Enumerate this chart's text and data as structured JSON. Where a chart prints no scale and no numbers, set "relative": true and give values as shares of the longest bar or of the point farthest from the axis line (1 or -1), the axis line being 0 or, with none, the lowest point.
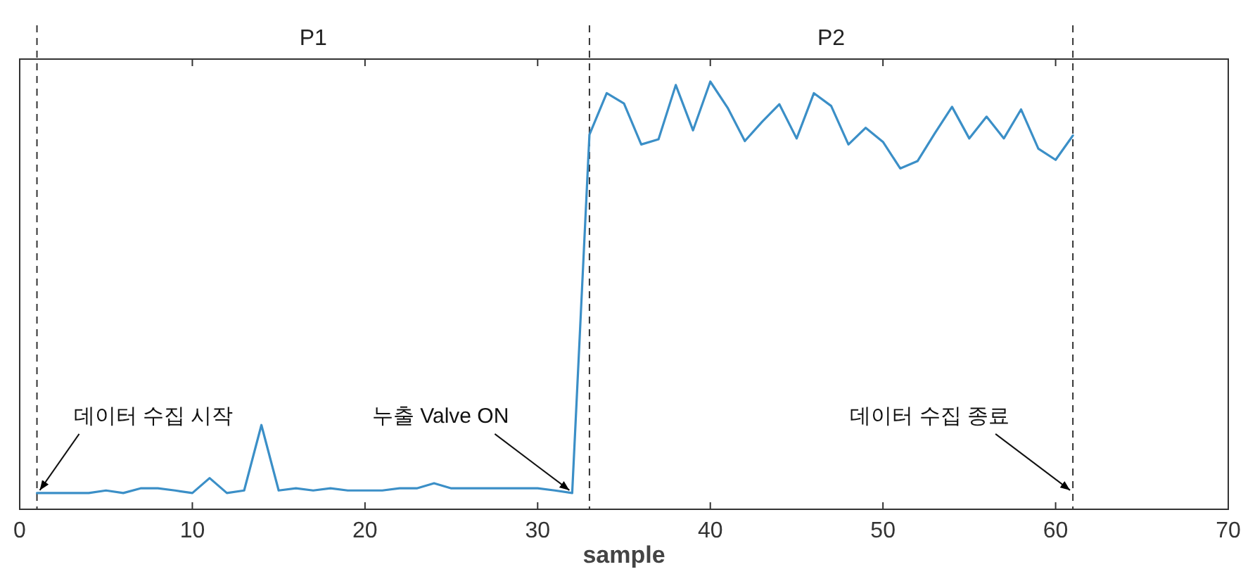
{
  "chart_data": {
    "type": "line",
    "relative": true,
    "xlabel": "sample",
    "x": [
      1,
      2,
      3,
      4,
      5,
      6,
      7,
      8,
      9,
      10,
      11,
      12,
      13,
      14,
      15,
      16,
      17,
      18,
      19,
      20,
      21,
      22,
      23,
      24,
      25,
      26,
      27,
      28,
      29,
      30,
      31,
      32,
      33,
      34,
      35,
      36,
      37,
      38,
      39,
      40,
      41,
      42,
      43,
      44,
      45,
      46,
      47,
      48,
      49,
      50,
      51,
      52,
      53,
      54,
      55,
      56,
      57,
      58,
      59,
      60,
      61
    ],
    "series": [
      {
        "color": "#3b8fc7",
        "values": [
          0.038,
          0.038,
          0.038,
          0.038,
          0.044,
          0.038,
          0.049,
          0.049,
          0.044,
          0.038,
          0.073,
          0.038,
          0.044,
          0.197,
          0.044,
          0.049,
          0.044,
          0.049,
          0.044,
          0.044,
          0.044,
          0.049,
          0.049,
          0.061,
          0.049,
          0.049,
          0.049,
          0.049,
          0.049,
          0.049,
          0.044,
          0.038,
          0.876,
          0.973,
          0.949,
          0.853,
          0.865,
          0.992,
          0.886,
          1.0,
          0.939,
          0.861,
          0.906,
          0.947,
          0.867,
          0.973,
          0.943,
          0.853,
          0.892,
          0.859,
          0.797,
          0.814,
          0.879,
          0.941,
          0.867,
          0.918,
          0.867,
          0.935,
          0.843,
          0.817,
          0.874
        ]
      }
    ],
    "xlim": [
      0,
      70
    ],
    "xticks": [
      0,
      10,
      20,
      30,
      40,
      50,
      60,
      70
    ],
    "tick_labels": "x",
    "grid": false,
    "ref_lines": [
      {
        "axis": "x",
        "value": 1,
        "line_style": "dashed",
        "color": "#333333"
      },
      {
        "axis": "x",
        "value": 33,
        "line_style": "dashed",
        "color": "#333333"
      },
      {
        "axis": "x",
        "value": 61,
        "line_style": "dashed",
        "color": "#333333"
      }
    ],
    "annotations": [
      "P1",
      "P2",
      {
        "text": "데이터 수집 시작",
        "x": 1,
        "y": 0.038
      },
      {
        "text": "누출 Valve ON",
        "x": 32,
        "y": 0.038
      },
      {
        "text": "데이터 수집 종료",
        "x": 61,
        "y": 0.038
      }
    ]
  }
}
